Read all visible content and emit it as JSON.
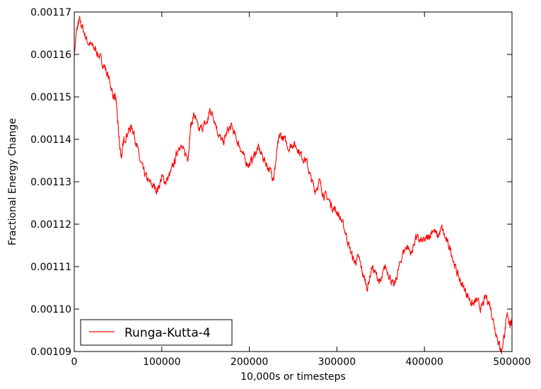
{
  "chart_data": {
    "type": "line",
    "title": "",
    "xlabel": "10,000s or timesteps",
    "ylabel": "Fractional Energy Change",
    "xlim": [
      0,
      500000
    ],
    "ylim": [
      0.00109,
      0.00117
    ],
    "x_ticks": [
      0,
      100000,
      200000,
      300000,
      400000,
      500000
    ],
    "x_tick_labels": [
      "0",
      "100000",
      "200000",
      "300000",
      "400000",
      "500000"
    ],
    "y_ticks": [
      0.00109,
      0.0011,
      0.00111,
      0.00112,
      0.00113,
      0.00114,
      0.00115,
      0.00116,
      0.00117
    ],
    "y_tick_labels": [
      "0.00109",
      "0.00110",
      "0.00111",
      "0.00112",
      "0.00113",
      "0.00114",
      "0.00115",
      "0.00116",
      "0.00117"
    ],
    "grid": false,
    "legend": {
      "position": "lower-left"
    },
    "series": [
      {
        "name": "Runga-Kutta-4",
        "color": "#ff0000",
        "points": [
          [
            0,
            0.00116
          ],
          [
            3000,
            0.001166
          ],
          [
            6000,
            0.001168
          ],
          [
            10000,
            0.001166
          ],
          [
            15000,
            0.001163
          ],
          [
            20000,
            0.001162
          ],
          [
            25000,
            0.001161
          ],
          [
            30000,
            0.001159
          ],
          [
            35000,
            0.001157
          ],
          [
            40000,
            0.001154
          ],
          [
            45000,
            0.00115
          ],
          [
            48000,
            0.001149
          ],
          [
            50000,
            0.001143
          ],
          [
            52000,
            0.001138
          ],
          [
            54000,
            0.001136
          ],
          [
            57000,
            0.00114
          ],
          [
            62000,
            0.001142
          ],
          [
            66000,
            0.001143
          ],
          [
            70000,
            0.00114
          ],
          [
            75000,
            0.001135
          ],
          [
            80000,
            0.001132
          ],
          [
            85000,
            0.00113
          ],
          [
            90000,
            0.001129
          ],
          [
            95000,
            0.001128
          ],
          [
            100000,
            0.001131
          ],
          [
            105000,
            0.00113
          ],
          [
            110000,
            0.001132
          ],
          [
            115000,
            0.001135
          ],
          [
            120000,
            0.001139
          ],
          [
            125000,
            0.001137
          ],
          [
            130000,
            0.001136
          ],
          [
            133000,
            0.001143
          ],
          [
            137000,
            0.001146
          ],
          [
            142000,
            0.001142
          ],
          [
            147000,
            0.001143
          ],
          [
            152000,
            0.001144
          ],
          [
            155000,
            0.001147
          ],
          [
            160000,
            0.001145
          ],
          [
            165000,
            0.001141
          ],
          [
            170000,
            0.001139
          ],
          [
            175000,
            0.001142
          ],
          [
            180000,
            0.001143
          ],
          [
            185000,
            0.00114
          ],
          [
            190000,
            0.001138
          ],
          [
            195000,
            0.001135
          ],
          [
            200000,
            0.001134
          ],
          [
            205000,
            0.001136
          ],
          [
            210000,
            0.001138
          ],
          [
            215000,
            0.001136
          ],
          [
            220000,
            0.001134
          ],
          [
            225000,
            0.001132
          ],
          [
            228000,
            0.001131
          ],
          [
            232000,
            0.001138
          ],
          [
            235000,
            0.001141
          ],
          [
            240000,
            0.00114
          ],
          [
            245000,
            0.001138
          ],
          [
            250000,
            0.001139
          ],
          [
            255000,
            0.001138
          ],
          [
            260000,
            0.001136
          ],
          [
            265000,
            0.001135
          ],
          [
            270000,
            0.001131
          ],
          [
            275000,
            0.001128
          ],
          [
            280000,
            0.00113
          ],
          [
            285000,
            0.001127
          ],
          [
            290000,
            0.001126
          ],
          [
            295000,
            0.001124
          ],
          [
            300000,
            0.001123
          ],
          [
            305000,
            0.001121
          ],
          [
            310000,
            0.001118
          ],
          [
            315000,
            0.001114
          ],
          [
            320000,
            0.001111
          ],
          [
            325000,
            0.001112
          ],
          [
            330000,
            0.001108
          ],
          [
            335000,
            0.001105
          ],
          [
            340000,
            0.00111
          ],
          [
            345000,
            0.001108
          ],
          [
            350000,
            0.001106
          ],
          [
            355000,
            0.00111
          ],
          [
            360000,
            0.001108
          ],
          [
            365000,
            0.001105
          ],
          [
            370000,
            0.001109
          ],
          [
            375000,
            0.001113
          ],
          [
            380000,
            0.001115
          ],
          [
            385000,
            0.001113
          ],
          [
            390000,
            0.001117
          ],
          [
            395000,
            0.001116
          ],
          [
            400000,
            0.001116
          ],
          [
            405000,
            0.001117
          ],
          [
            410000,
            0.001119
          ],
          [
            415000,
            0.001117
          ],
          [
            420000,
            0.001119
          ],
          [
            425000,
            0.001116
          ],
          [
            430000,
            0.001114
          ],
          [
            435000,
            0.00111
          ],
          [
            440000,
            0.001107
          ],
          [
            445000,
            0.001105
          ],
          [
            450000,
            0.001103
          ],
          [
            455000,
            0.001101
          ],
          [
            460000,
            0.001102
          ],
          [
            465000,
            0.0011
          ],
          [
            470000,
            0.001103
          ],
          [
            475000,
            0.001101
          ],
          [
            480000,
            0.001096
          ],
          [
            485000,
            0.001092
          ],
          [
            488000,
            0.00109
          ],
          [
            492000,
            0.001095
          ],
          [
            495000,
            0.001099
          ],
          [
            498000,
            0.001096
          ],
          [
            500000,
            0.001098
          ]
        ]
      }
    ]
  }
}
